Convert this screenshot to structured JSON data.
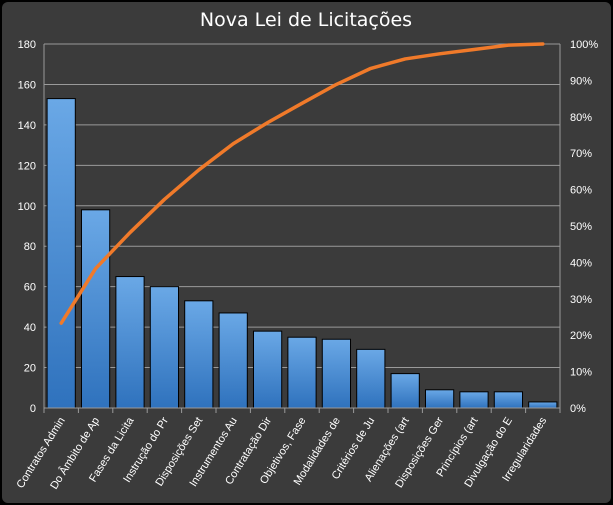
{
  "chart_data": {
    "type": "bar",
    "title": "Nova Lei de Licitações",
    "xlabel": "",
    "ylabel": "",
    "categories": [
      "Contratos Admin",
      "Do Âmbito de Ap",
      "Fases da Licita",
      "Instrução do Pr",
      "Disposições Set",
      "Instrumentos Au",
      "Contratação Dir",
      "Objetivos, Fase",
      "Modalidades de",
      "Critérios de Ju",
      "Alienações (art",
      "Disposições Ger",
      "Princípios (art",
      "Divulgação do E",
      "Irregularidades"
    ],
    "series": [
      {
        "type": "bar",
        "axis": "left",
        "values": [
          153,
          98,
          65,
          60,
          53,
          47,
          38,
          35,
          34,
          29,
          17,
          9,
          8,
          8,
          3
        ]
      },
      {
        "type": "line",
        "axis": "right",
        "values": [
          23.3,
          38.3,
          48.2,
          57.3,
          65.4,
          72.6,
          78.4,
          83.7,
          88.9,
          93.3,
          95.9,
          97.3,
          98.5,
          99.7,
          100
        ]
      }
    ],
    "ylim": [
      0,
      180
    ],
    "yticks": [
      0,
      20,
      40,
      60,
      80,
      100,
      120,
      140,
      160,
      180
    ],
    "y2lim": [
      0,
      100
    ],
    "y2ticks": [
      "0%",
      "10%",
      "20%",
      "30%",
      "40%",
      "50%",
      "60%",
      "70%",
      "80%",
      "90%",
      "100%"
    ],
    "grid": true,
    "legend": "none",
    "colors": {
      "background": "#3b3b3b",
      "outer": "#000000",
      "bar_top": "#6aa8e6",
      "bar_bottom": "#2f72bd",
      "bar_edge": "#000000",
      "line": "#f07a2a",
      "grid": "#9a9a9a",
      "text": "#ffffff"
    }
  }
}
